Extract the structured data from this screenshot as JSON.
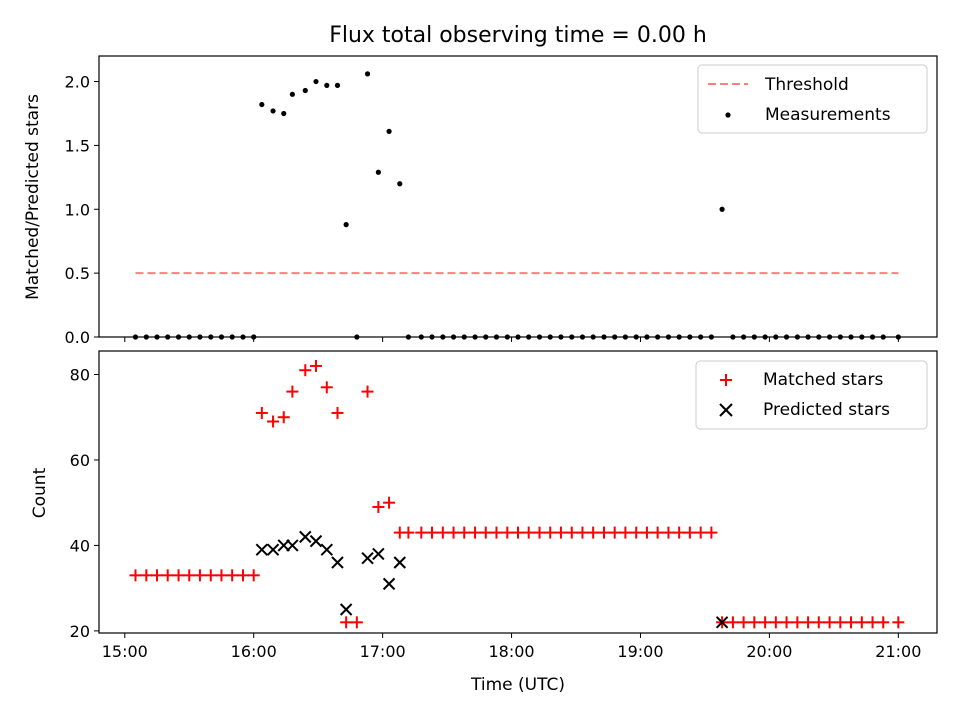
{
  "chart_data": [
    {
      "type": "scatter",
      "title": "Flux total observing time = 0.00 h",
      "xlabel": "",
      "ylabel": "Matched/Predicted stars",
      "x_unit": "hours UTC",
      "xlim": [
        14.8,
        21.3
      ],
      "ylim": [
        0,
        2.2
      ],
      "x_ticks": [
        15,
        16,
        17,
        18,
        19,
        20,
        21
      ],
      "y_ticks": [
        0.0,
        0.5,
        1.0,
        1.5,
        2.0
      ],
      "y_tick_labels": [
        "0.0",
        "0.5",
        "1.0",
        "1.5",
        "2.0"
      ],
      "legend_position": "upper right",
      "series": [
        {
          "name": "Threshold",
          "kind": "dashed-line",
          "color": "#ff7f7f",
          "x": [
            15.083,
            21.0
          ],
          "y": [
            0.5,
            0.5
          ]
        },
        {
          "name": "Measurements",
          "kind": "dot",
          "color": "#000000",
          "x": [
            15.083,
            15.167,
            15.25,
            15.333,
            15.417,
            15.5,
            15.583,
            15.667,
            15.75,
            15.833,
            15.917,
            16.0,
            16.063,
            16.15,
            16.233,
            16.3,
            16.4,
            16.483,
            16.567,
            16.65,
            16.717,
            16.8,
            16.883,
            16.967,
            17.05,
            17.133,
            17.2,
            17.3,
            17.383,
            17.467,
            17.55,
            17.633,
            17.717,
            17.8,
            17.883,
            17.967,
            18.05,
            18.133,
            18.217,
            18.3,
            18.383,
            18.467,
            18.55,
            18.633,
            18.717,
            18.8,
            18.883,
            18.967,
            19.05,
            19.133,
            19.217,
            19.3,
            19.383,
            19.467,
            19.55,
            19.633,
            19.717,
            19.8,
            19.883,
            19.967,
            20.05,
            20.133,
            20.217,
            20.3,
            20.383,
            20.467,
            20.55,
            20.633,
            20.717,
            20.8,
            20.883,
            21.0
          ],
          "y": [
            0,
            0,
            0,
            0,
            0,
            0,
            0,
            0,
            0,
            0,
            0,
            0,
            1.82,
            1.77,
            1.75,
            1.9,
            1.93,
            2.0,
            1.97,
            1.97,
            0.88,
            0,
            2.06,
            1.29,
            1.61,
            1.2,
            0,
            0,
            0,
            0,
            0,
            0,
            0,
            0,
            0,
            0,
            0,
            0,
            0,
            0,
            0,
            0,
            0,
            0,
            0,
            0,
            0,
            0,
            0,
            0,
            0,
            0,
            0,
            0,
            0,
            1.0,
            0,
            0,
            0,
            0,
            0,
            0,
            0,
            0,
            0,
            0,
            0,
            0,
            0,
            0,
            0,
            0
          ]
        }
      ]
    },
    {
      "type": "scatter",
      "title": "",
      "xlabel": "Time (UTC)",
      "ylabel": "Count",
      "x_unit": "hours UTC",
      "xlim": [
        14.8,
        21.3
      ],
      "ylim": [
        19.5,
        85.5
      ],
      "x_ticks": [
        15,
        16,
        17,
        18,
        19,
        20,
        21
      ],
      "x_tick_labels": [
        "15:00",
        "16:00",
        "17:00",
        "18:00",
        "19:00",
        "20:00",
        "21:00"
      ],
      "y_ticks": [
        20,
        40,
        60,
        80
      ],
      "y_tick_labels": [
        "20",
        "40",
        "60",
        "80"
      ],
      "legend_position": "upper right",
      "series": [
        {
          "name": "Matched stars",
          "kind": "plus",
          "color": "#ff0000",
          "x": [
            15.083,
            15.167,
            15.25,
            15.333,
            15.417,
            15.5,
            15.583,
            15.667,
            15.75,
            15.833,
            15.917,
            16.0,
            16.063,
            16.15,
            16.233,
            16.3,
            16.4,
            16.483,
            16.567,
            16.65,
            16.717,
            16.8,
            16.883,
            16.967,
            17.05,
            17.133,
            17.2,
            17.3,
            17.383,
            17.467,
            17.55,
            17.633,
            17.717,
            17.8,
            17.883,
            17.967,
            18.05,
            18.133,
            18.217,
            18.3,
            18.383,
            18.467,
            18.55,
            18.633,
            18.717,
            18.8,
            18.883,
            18.967,
            19.05,
            19.133,
            19.217,
            19.3,
            19.383,
            19.467,
            19.55,
            19.633,
            19.717,
            19.8,
            19.883,
            19.967,
            20.05,
            20.133,
            20.217,
            20.3,
            20.383,
            20.467,
            20.55,
            20.633,
            20.717,
            20.8,
            20.883,
            21.0
          ],
          "y": [
            33,
            33,
            33,
            33,
            33,
            33,
            33,
            33,
            33,
            33,
            33,
            33,
            71,
            69,
            70,
            76,
            81,
            82,
            77,
            71,
            22,
            22,
            76,
            49,
            50,
            43,
            43,
            43,
            43,
            43,
            43,
            43,
            43,
            43,
            43,
            43,
            43,
            43,
            43,
            43,
            43,
            43,
            43,
            43,
            43,
            43,
            43,
            43,
            43,
            43,
            43,
            43,
            43,
            43,
            43,
            22,
            22,
            22,
            22,
            22,
            22,
            22,
            22,
            22,
            22,
            22,
            22,
            22,
            22,
            22,
            22,
            22
          ]
        },
        {
          "name": "Predicted stars",
          "kind": "cross",
          "color": "#000000",
          "x": [
            16.063,
            16.15,
            16.233,
            16.3,
            16.4,
            16.483,
            16.567,
            16.65,
            16.717,
            16.883,
            16.967,
            17.05,
            17.133,
            19.633
          ],
          "y": [
            39,
            39,
            40,
            40,
            42,
            41,
            39,
            36,
            25,
            37,
            38,
            31,
            36,
            22
          ]
        }
      ]
    }
  ]
}
